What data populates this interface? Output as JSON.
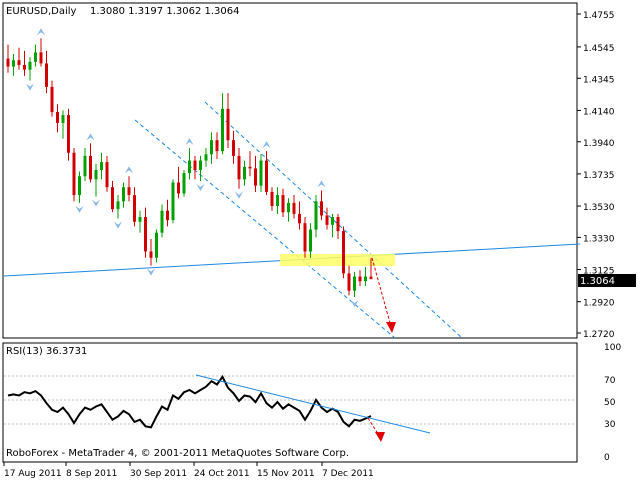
{
  "header": {
    "symbol": "EURUSD,Daily",
    "ohlc": "1.3080 1.3197 1.3062 1.3064"
  },
  "price_panel": {
    "last_price": "1.3064",
    "y_ticks": [
      {
        "label": "1.4755",
        "value": 1.4755
      },
      {
        "label": "1.4545",
        "value": 1.4545
      },
      {
        "label": "1.4345",
        "value": 1.4345
      },
      {
        "label": "1.4140",
        "value": 1.414
      },
      {
        "label": "1.3940",
        "value": 1.394
      },
      {
        "label": "1.3735",
        "value": 1.3735
      },
      {
        "label": "1.3530",
        "value": 1.353
      },
      {
        "label": "1.3330",
        "value": 1.333
      },
      {
        "label": "1.3125",
        "value": 1.3125
      },
      {
        "label": "1.2920",
        "value": 1.292
      },
      {
        "label": "1.2720",
        "value": 1.272
      }
    ]
  },
  "rsi_panel": {
    "title": "RSI(13) 36.3731",
    "y_ticks": [
      {
        "label": "100",
        "value": 100
      },
      {
        "label": "70",
        "value": 70
      },
      {
        "label": "50",
        "value": 50
      },
      {
        "label": "30",
        "value": 30
      },
      {
        "label": "0",
        "value": 0
      }
    ],
    "watermark": "RoboForex - MetaTrader 4, © 2001-2011 MetaQuotes Software Corp."
  },
  "x_axis": {
    "labels": [
      "17 Aug 2011",
      "8 Sep 2011",
      "30 Sep 2011",
      "24 Oct 2011",
      "15 Nov 2011",
      "7 Dec 2011"
    ]
  },
  "colors": {
    "bull": "#00a000",
    "bear": "#d00000",
    "trendline": "#1e88e5",
    "channel": "#1e88e5",
    "fractal": "#87b8e8",
    "highlight": "#ffff66",
    "forecast": "#e00000"
  },
  "chart_data": {
    "type": "candlestick",
    "symbol": "EURUSD",
    "timeframe": "Daily",
    "candles_ohlc": [
      [
        1.447,
        1.456,
        1.438,
        1.442
      ],
      [
        1.442,
        1.45,
        1.436,
        1.446
      ],
      [
        1.446,
        1.454,
        1.44,
        1.443
      ],
      [
        1.443,
        1.452,
        1.436,
        1.44
      ],
      [
        1.44,
        1.448,
        1.433,
        1.445
      ],
      [
        1.445,
        1.456,
        1.442,
        1.451
      ],
      [
        1.451,
        1.46,
        1.442,
        1.444
      ],
      [
        1.444,
        1.452,
        1.425,
        1.429
      ],
      [
        1.429,
        1.433,
        1.41,
        1.413
      ],
      [
        1.413,
        1.418,
        1.4,
        1.406
      ],
      [
        1.406,
        1.414,
        1.396,
        1.411
      ],
      [
        1.411,
        1.415,
        1.382,
        1.387
      ],
      [
        1.387,
        1.39,
        1.356,
        1.36
      ],
      [
        1.36,
        1.375,
        1.355,
        1.372
      ],
      [
        1.372,
        1.39,
        1.369,
        1.385
      ],
      [
        1.385,
        1.393,
        1.368,
        1.37
      ],
      [
        1.37,
        1.38,
        1.359,
        1.376
      ],
      [
        1.376,
        1.387,
        1.37,
        1.381
      ],
      [
        1.381,
        1.385,
        1.362,
        1.365
      ],
      [
        1.365,
        1.369,
        1.349,
        1.351
      ],
      [
        1.351,
        1.36,
        1.345,
        1.356
      ],
      [
        1.356,
        1.368,
        1.352,
        1.365
      ],
      [
        1.365,
        1.372,
        1.356,
        1.36
      ],
      [
        1.36,
        1.365,
        1.34,
        1.343
      ],
      [
        1.343,
        1.35,
        1.336,
        1.346
      ],
      [
        1.346,
        1.352,
        1.32,
        1.324
      ],
      [
        1.324,
        1.332,
        1.315,
        1.32
      ],
      [
        1.32,
        1.338,
        1.317,
        1.336
      ],
      [
        1.336,
        1.354,
        1.333,
        1.35
      ],
      [
        1.35,
        1.357,
        1.34,
        1.344
      ],
      [
        1.344,
        1.37,
        1.342,
        1.368
      ],
      [
        1.368,
        1.378,
        1.358,
        1.361
      ],
      [
        1.361,
        1.376,
        1.359,
        1.374
      ],
      [
        1.374,
        1.39,
        1.37,
        1.382
      ],
      [
        1.382,
        1.385,
        1.37,
        1.376
      ],
      [
        1.376,
        1.385,
        1.369,
        1.382
      ],
      [
        1.382,
        1.39,
        1.378,
        1.386
      ],
      [
        1.386,
        1.4,
        1.38,
        1.395
      ],
      [
        1.395,
        1.4,
        1.383,
        1.388
      ],
      [
        1.388,
        1.425,
        1.386,
        1.415
      ],
      [
        1.415,
        1.425,
        1.39,
        1.395
      ],
      [
        1.395,
        1.401,
        1.38,
        1.385
      ],
      [
        1.385,
        1.39,
        1.364,
        1.37
      ],
      [
        1.37,
        1.382,
        1.366,
        1.378
      ],
      [
        1.378,
        1.388,
        1.372,
        1.377
      ],
      [
        1.377,
        1.385,
        1.362,
        1.366
      ],
      [
        1.366,
        1.386,
        1.362,
        1.382
      ],
      [
        1.382,
        1.388,
        1.36,
        1.362
      ],
      [
        1.362,
        1.365,
        1.35,
        1.353
      ],
      [
        1.353,
        1.365,
        1.348,
        1.36
      ],
      [
        1.36,
        1.364,
        1.346,
        1.349
      ],
      [
        1.349,
        1.358,
        1.343,
        1.355
      ],
      [
        1.355,
        1.36,
        1.345,
        1.348
      ],
      [
        1.348,
        1.356,
        1.338,
        1.342
      ],
      [
        1.342,
        1.346,
        1.32,
        1.324
      ],
      [
        1.324,
        1.342,
        1.32,
        1.338
      ],
      [
        1.338,
        1.36,
        1.333,
        1.356
      ],
      [
        1.356,
        1.363,
        1.344,
        1.347
      ],
      [
        1.347,
        1.352,
        1.338,
        1.341
      ],
      [
        1.341,
        1.348,
        1.333,
        1.346
      ],
      [
        1.346,
        1.348,
        1.332,
        1.337
      ],
      [
        1.337,
        1.34,
        1.307,
        1.31
      ],
      [
        1.31,
        1.315,
        1.296,
        1.299
      ],
      [
        1.299,
        1.311,
        1.295,
        1.308
      ],
      [
        1.308,
        1.312,
        1.302,
        1.305
      ],
      [
        1.305,
        1.314,
        1.302,
        1.308
      ],
      [
        1.308,
        1.3197,
        1.3062,
        1.3064
      ]
    ],
    "rsi_period": 13,
    "rsi_current": 36.3731,
    "rsi_values": [
      55,
      56,
      55,
      58,
      57,
      59,
      55,
      48,
      42,
      40,
      44,
      38,
      30,
      38,
      44,
      42,
      45,
      47,
      40,
      33,
      36,
      41,
      38,
      31,
      33,
      27,
      26,
      36,
      45,
      42,
      55,
      52,
      58,
      60,
      57,
      60,
      63,
      68,
      65,
      72,
      62,
      57,
      50,
      55,
      54,
      49,
      57,
      48,
      44,
      49,
      43,
      47,
      44,
      41,
      33,
      41,
      51,
      44,
      40,
      43,
      40,
      31,
      27,
      33,
      32,
      34,
      36.37
    ],
    "price_ylim": [
      1.272,
      1.4755
    ],
    "rsi_ylim": [
      0,
      100
    ],
    "rsi_levels": [
      70,
      50,
      30
    ]
  }
}
